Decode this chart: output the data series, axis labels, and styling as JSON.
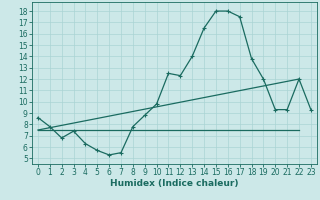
{
  "title": "",
  "xlabel": "Humidex (Indice chaleur)",
  "ylabel": "",
  "bg_color": "#cce8e8",
  "line_color": "#1a6b60",
  "grid_color": "#aad4d4",
  "xlim": [
    -0.5,
    23.5
  ],
  "ylim": [
    4.5,
    18.8
  ],
  "xticks": [
    0,
    1,
    2,
    3,
    4,
    5,
    6,
    7,
    8,
    9,
    10,
    11,
    12,
    13,
    14,
    15,
    16,
    17,
    18,
    19,
    20,
    21,
    22,
    23
  ],
  "yticks": [
    5,
    6,
    7,
    8,
    9,
    10,
    11,
    12,
    13,
    14,
    15,
    16,
    17,
    18
  ],
  "line1_x": [
    0,
    1,
    2,
    3,
    4,
    5,
    6,
    7,
    8,
    9,
    10,
    11,
    12,
    13,
    14,
    15,
    16,
    17,
    18,
    19,
    20,
    21,
    22,
    23
  ],
  "line1_y": [
    8.6,
    7.8,
    6.8,
    7.4,
    6.3,
    5.7,
    5.3,
    5.5,
    7.8,
    8.8,
    9.8,
    12.5,
    12.3,
    14.0,
    16.5,
    18.0,
    18.0,
    17.5,
    13.8,
    12.0,
    9.3,
    9.3,
    12.0,
    9.3
  ],
  "line2_x": [
    0,
    22
  ],
  "line2_y": [
    7.5,
    7.5
  ],
  "line3_x": [
    0,
    22
  ],
  "line3_y": [
    7.5,
    12.0
  ],
  "tick_fontsize": 5.5,
  "xlabel_fontsize": 6.5
}
